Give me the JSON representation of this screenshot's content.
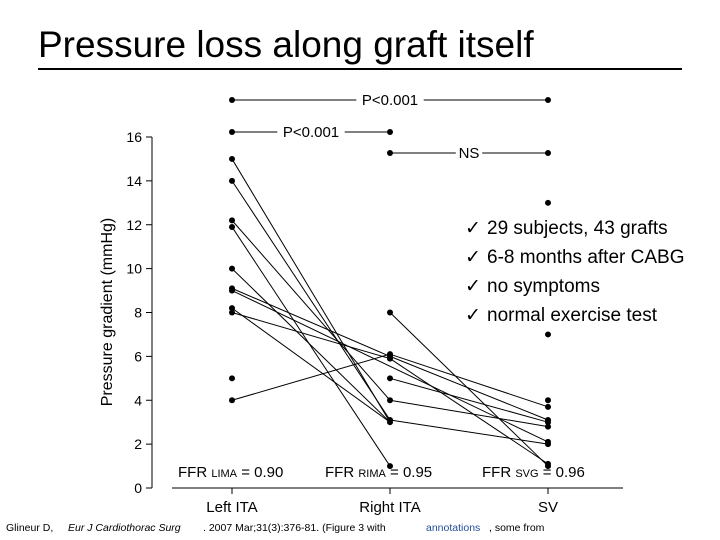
{
  "slide_title": "Pressure loss along graft itself",
  "bullets": [
    {
      "check": "✓",
      "text": "29 subjects, 43 grafts"
    },
    {
      "check": "✓",
      "text": "6-8 months after CABG"
    },
    {
      "check": "✓",
      "text": "no symptoms"
    },
    {
      "check": "✓",
      "text": "normal exercise test"
    }
  ],
  "ffr": [
    {
      "prefix": "FFR",
      "sub": "LIMA",
      "value": "= 0.90"
    },
    {
      "prefix": "FFR",
      "sub": "RIMA",
      "value": "= 0.95"
    },
    {
      "prefix": "FFR",
      "sub": "SVG",
      "value": "= 0.96"
    }
  ],
  "citation": {
    "author": "Glineur D,",
    "journal": "Eur J Cardiothorac Surg",
    "ref": ". 2007 Mar;31(3):376-81. (Figure 3 with",
    "annot": "annotations",
    "tail": ", some from"
  },
  "chart_data": {
    "type": "line",
    "ylabel": "Pressure gradient (mmHg)",
    "categories": [
      "Left ITA",
      "Right ITA",
      "SV"
    ],
    "ylim": [
      0,
      16
    ],
    "yticks": [
      0,
      2,
      4,
      6,
      8,
      10,
      12,
      14,
      16
    ],
    "points": {
      "Left ITA": [
        15,
        14,
        12.2,
        11.9,
        10,
        9.1,
        9,
        8.2,
        8,
        5,
        4
      ],
      "Right ITA": [
        8,
        6.1,
        6,
        5.9,
        5,
        4,
        3.1,
        3,
        1
      ],
      "SV": [
        13,
        7,
        4,
        3.7,
        3.1,
        3,
        2.8,
        2.1,
        2,
        1.1,
        1
      ]
    },
    "paired_lines": [
      {
        "from": [
          "Left ITA",
          15
        ],
        "to": [
          "Right ITA",
          3
        ]
      },
      {
        "from": [
          "Left ITA",
          14
        ],
        "to": [
          "Right ITA",
          3.1
        ]
      },
      {
        "from": [
          "Left ITA",
          12.2
        ],
        "to": [
          "Right ITA",
          4
        ]
      },
      {
        "from": [
          "Left ITA",
          11.9
        ],
        "to": [
          "Right ITA",
          1
        ]
      },
      {
        "from": [
          "Left ITA",
          10
        ],
        "to": [
          "Right ITA",
          3
        ]
      },
      {
        "from": [
          "Left ITA",
          9.1
        ],
        "to": [
          "Right ITA",
          6
        ]
      },
      {
        "from": [
          "Left ITA",
          9
        ],
        "to": [
          "SV",
          2.1
        ]
      },
      {
        "from": [
          "Left ITA",
          8.2
        ],
        "to": [
          "Right ITA",
          3
        ]
      },
      {
        "from": [
          "Left ITA",
          8
        ],
        "to": [
          "Right ITA",
          5.9
        ]
      },
      {
        "from": [
          "Left ITA",
          4
        ],
        "to": [
          "Right ITA",
          6.1
        ]
      },
      {
        "from": [
          "Right ITA",
          8
        ],
        "to": [
          "SV",
          1
        ]
      },
      {
        "from": [
          "Right ITA",
          6.1
        ],
        "to": [
          "SV",
          3.7
        ]
      },
      {
        "from": [
          "Right ITA",
          6
        ],
        "to": [
          "SV",
          3.1
        ]
      },
      {
        "from": [
          "Right ITA",
          5.9
        ],
        "to": [
          "SV",
          1.1
        ]
      },
      {
        "from": [
          "Right ITA",
          5
        ],
        "to": [
          "SV",
          3
        ]
      },
      {
        "from": [
          "Right ITA",
          4
        ],
        "to": [
          "SV",
          2.8
        ]
      },
      {
        "from": [
          "Right ITA",
          3.1
        ],
        "to": [
          "SV",
          2
        ]
      }
    ],
    "significance": [
      {
        "label": "P<0.001",
        "from": "Left ITA",
        "to": "SV",
        "level": 1
      },
      {
        "label": "P<0.001",
        "from": "Left ITA",
        "to": "Right ITA",
        "level": 2
      },
      {
        "label": "NS",
        "from": "Right ITA",
        "to": "SV",
        "level": 3
      }
    ]
  }
}
